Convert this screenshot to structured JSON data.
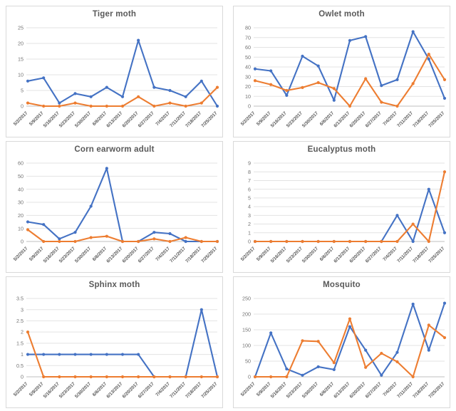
{
  "colors": {
    "blue": "#4472C4",
    "orange": "#ED7D31",
    "grid": "#E3E3E3",
    "axis": "#BFBFBF",
    "title": "#595959",
    "tick": "#737373",
    "panel_border": "#D9D9D9"
  },
  "chart_data": [
    {
      "type": "line",
      "title": "Tiger moth",
      "xlabel": "",
      "ylabel": "",
      "ylim": [
        0,
        25
      ],
      "yticks": [
        0,
        5,
        10,
        15,
        20,
        25
      ],
      "grid": true,
      "legend": "none",
      "categories": [
        "5/2/2017",
        "5/9/2017",
        "5/16/2017",
        "5/23/2017",
        "5/30/2017",
        "6/6/2017",
        "6/13/2017",
        "6/20/2017",
        "6/27/2017",
        "7/4/2017",
        "7/11/2017",
        "7/18/2017",
        "7/25/2017"
      ],
      "series": [
        {
          "name": "blue",
          "color": "blue",
          "values": [
            8,
            9,
            1,
            4,
            3,
            6,
            3,
            21,
            6,
            5,
            3,
            8,
            0
          ]
        },
        {
          "name": "orange",
          "color": "orange",
          "values": [
            1,
            0,
            0,
            1,
            0,
            0,
            0,
            3,
            0,
            1,
            0,
            1,
            6
          ]
        }
      ]
    },
    {
      "type": "line",
      "title": "Owlet moth",
      "xlabel": "",
      "ylabel": "",
      "ylim": [
        0,
        80
      ],
      "yticks": [
        0,
        10,
        20,
        30,
        40,
        50,
        60,
        70,
        80
      ],
      "grid": true,
      "legend": "none",
      "categories": [
        "5/2/2017",
        "5/9/2017",
        "5/16/2017",
        "5/23/2017",
        "5/30/2017",
        "6/6/2017",
        "6/13/2017",
        "6/20/2017",
        "6/27/2017",
        "7/4/2017",
        "7/11/2017",
        "7/18/2017",
        "7/25/2017"
      ],
      "series": [
        {
          "name": "blue",
          "color": "blue",
          "values": [
            38,
            36,
            11,
            51,
            41,
            6,
            67,
            71,
            21,
            27,
            76,
            48,
            8
          ]
        },
        {
          "name": "orange",
          "color": "orange",
          "values": [
            26,
            22,
            16,
            19,
            24,
            18,
            0,
            28,
            4,
            0,
            23,
            53,
            27
          ]
        }
      ]
    },
    {
      "type": "line",
      "title": "Corn earworm adult",
      "xlabel": "",
      "ylabel": "",
      "ylim": [
        0,
        60
      ],
      "yticks": [
        0,
        10,
        20,
        30,
        40,
        50,
        60
      ],
      "grid": true,
      "legend": "none",
      "categories": [
        "5/2/2017",
        "5/9/2017",
        "5/16/2017",
        "5/23/2017",
        "5/30/2017",
        "6/6/2017",
        "6/13/2017",
        "6/20/2017",
        "6/27/2017",
        "7/4/2017",
        "7/11/2017",
        "7/18/2017",
        "7/25/2017"
      ],
      "series": [
        {
          "name": "blue",
          "color": "blue",
          "values": [
            15,
            13,
            2,
            7,
            27,
            56,
            0,
            0,
            7,
            6,
            0,
            0,
            0
          ]
        },
        {
          "name": "orange",
          "color": "orange",
          "values": [
            9,
            0,
            0,
            0,
            3,
            4,
            0,
            0,
            2,
            0,
            3,
            0,
            0
          ]
        }
      ]
    },
    {
      "type": "line",
      "title": "Eucalyptus moth",
      "xlabel": "",
      "ylabel": "",
      "ylim": [
        0,
        9
      ],
      "yticks": [
        0,
        1,
        2,
        3,
        4,
        5,
        6,
        7,
        8,
        9
      ],
      "grid": true,
      "legend": "none",
      "categories": [
        "5/2/2017",
        "5/9/2017",
        "5/16/2017",
        "5/23/2017",
        "5/30/2017",
        "6/6/2017",
        "6/13/2017",
        "6/20/2017",
        "6/27/2017",
        "7/4/2017",
        "7/11/2017",
        "7/18/2017",
        "7/25/2017"
      ],
      "series": [
        {
          "name": "blue",
          "color": "blue",
          "values": [
            0,
            0,
            0,
            0,
            0,
            0,
            0,
            0,
            0,
            3,
            0,
            6,
            1
          ]
        },
        {
          "name": "orange",
          "color": "orange",
          "values": [
            0,
            0,
            0,
            0,
            0,
            0,
            0,
            0,
            0,
            0,
            2,
            0,
            8
          ]
        }
      ]
    },
    {
      "type": "line",
      "title": "Sphinx moth",
      "xlabel": "",
      "ylabel": "",
      "ylim": [
        0,
        3.5
      ],
      "yticks": [
        0,
        0.5,
        1,
        1.5,
        2,
        2.5,
        3,
        3.5
      ],
      "grid": true,
      "legend": "none",
      "categories": [
        "5/2/2017",
        "5/9/2017",
        "5/16/2017",
        "5/23/2017",
        "5/30/2017",
        "6/6/2017",
        "6/13/2017",
        "6/20/2017",
        "6/27/2017",
        "7/4/2017",
        "7/11/2017",
        "7/18/2017",
        "7/25/2017"
      ],
      "series": [
        {
          "name": "blue",
          "color": "blue",
          "values": [
            1,
            1,
            1,
            1,
            1,
            1,
            1,
            1,
            0,
            0,
            0,
            3,
            0
          ]
        },
        {
          "name": "orange",
          "color": "orange",
          "values": [
            2,
            0,
            0,
            0,
            0,
            0,
            0,
            0,
            0,
            0,
            0,
            0,
            0
          ]
        }
      ]
    },
    {
      "type": "line",
      "title": "Mosquito",
      "xlabel": "",
      "ylabel": "",
      "ylim": [
        0,
        250
      ],
      "yticks": [
        0,
        50,
        100,
        150,
        200,
        250
      ],
      "grid": true,
      "legend": "none",
      "categories": [
        "5/2/2017",
        "5/9/2017",
        "5/16/2017",
        "5/23/2017",
        "5/30/2017",
        "6/6/2017",
        "6/13/2017",
        "6/20/2017",
        "6/27/2017",
        "7/4/2017",
        "7/11/2017",
        "7/18/2017",
        "7/25/2017"
      ],
      "series": [
        {
          "name": "blue",
          "color": "blue",
          "values": [
            0,
            140,
            25,
            5,
            32,
            23,
            160,
            85,
            5,
            78,
            232,
            85,
            235
          ]
        },
        {
          "name": "orange",
          "color": "orange",
          "values": [
            0,
            0,
            0,
            115,
            113,
            45,
            185,
            30,
            75,
            48,
            0,
            165,
            125
          ]
        }
      ]
    }
  ]
}
